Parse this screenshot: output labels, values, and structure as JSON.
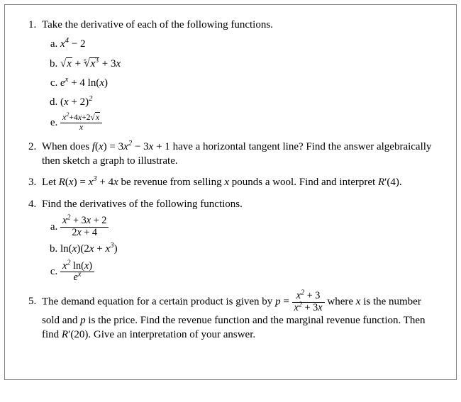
{
  "background_color": "#ffffff",
  "text_color": "#000000",
  "border_color": "#808080",
  "font_family": "Times New Roman",
  "font_size_pt": 11,
  "problems": {
    "p1": {
      "prompt": "Take the derivative of each of the following functions.",
      "items": {
        "a": "x⁴ − 2",
        "b": "√x + ⁵√(x³) + 3x",
        "c": "eˣ + 4 ln(x)",
        "d": "(x + 2)²",
        "e": "(x² + 4x + 2√x) / x"
      }
    },
    "p2": {
      "prompt_a": "When does ",
      "fn": "f(x) = 3x² − 3x + 1",
      "prompt_b": " have a horizontal tangent line?  Find the answer algebraically then sketch a graph to illustrate."
    },
    "p3": {
      "prompt_a": "Let ",
      "fn": "R(x) = x³ + 4x",
      "prompt_b": " be revenue from selling ",
      "var": "x",
      "prompt_c": " pounds a wool. Find and interpret ",
      "target": "R′(4)",
      "prompt_d": "."
    },
    "p4": {
      "prompt": "Find the derivatives of the following functions.",
      "items": {
        "a": "(x² + 3x + 2)/(2x + 4)",
        "b": "ln(x)(2x + x³)",
        "c": "x² ln(x) / eˣ"
      }
    },
    "p5": {
      "prompt_a": "The demand equation for a certain product is given by ",
      "eq_lhs": "p = ",
      "frac_num": "x² + 3",
      "frac_den": "x² + 3x",
      "prompt_b": " where ",
      "var": "x",
      "prompt_c": " is the number sold and ",
      "var2": "p",
      "prompt_d": " is the price. Find the revenue function and the marginal revenue function. Then find ",
      "target": "R′(20)",
      "prompt_e": ". Give an interpretation of your answer."
    }
  }
}
